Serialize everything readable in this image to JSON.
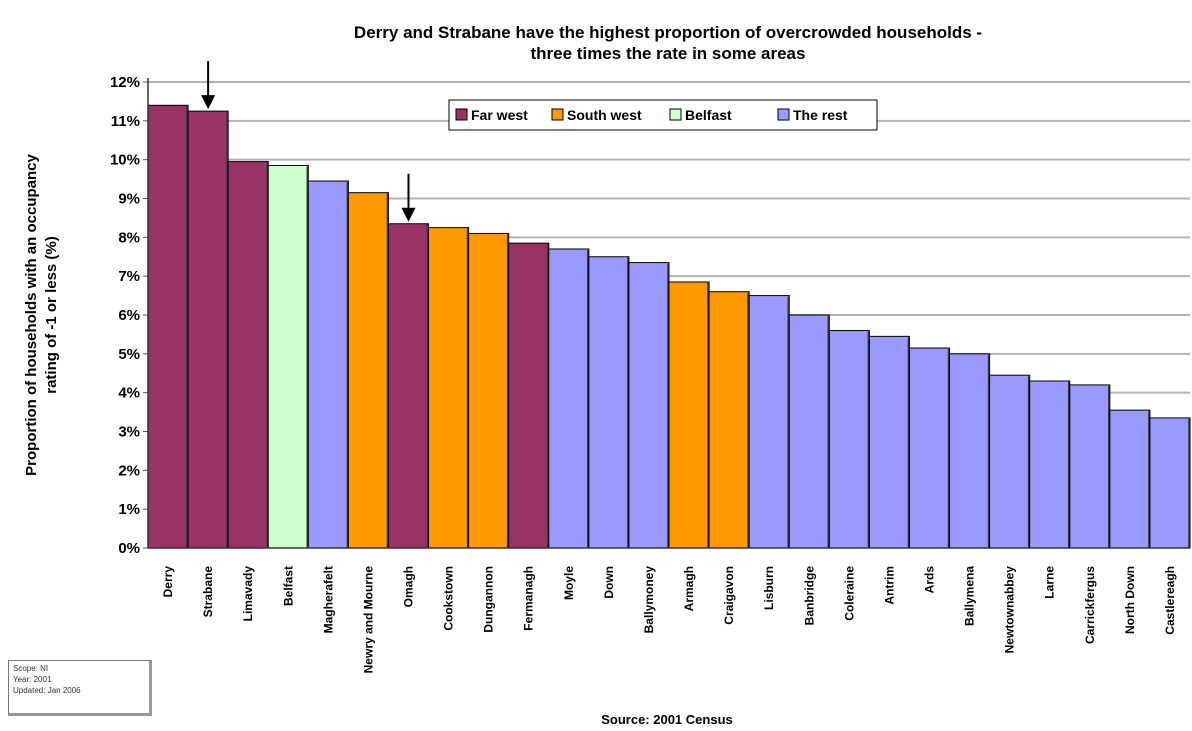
{
  "chart_data": {
    "type": "bar",
    "title": [
      "Derry and Strabane have the highest proportion of overcrowded households -",
      "three times the rate in some areas"
    ],
    "ylabel": [
      "Proportion of households with an occupancy",
      "rating of -1 or less (%)"
    ],
    "xlabel": "",
    "source": "Source: 2001 Census",
    "ylim": [
      0,
      12
    ],
    "yticks": [
      "0%",
      "1%",
      "2%",
      "3%",
      "4%",
      "5%",
      "6%",
      "7%",
      "8%",
      "9%",
      "10%",
      "11%",
      "12%"
    ],
    "grid": true,
    "legend_position": "top-center",
    "legend": [
      {
        "name": "Far west",
        "color": "#993366"
      },
      {
        "name": "South west",
        "color": "#ff9900"
      },
      {
        "name": "Belfast",
        "color": "#ccffcc"
      },
      {
        "name": "The rest",
        "color": "#9999ff"
      }
    ],
    "categories": [
      "Derry",
      "Strabane",
      "Limavady",
      "Belfast",
      "Magherafelt",
      "Newry and Mourne",
      "Omagh",
      "Cookstown",
      "Dungannon",
      "Fermanagh",
      "Moyle",
      "Down",
      "Ballymoney",
      "Armagh",
      "Craigavon",
      "Lisburn",
      "Banbridge",
      "Coleraine",
      "Antrim",
      "Ards",
      "Ballymena",
      "Newtownabbey",
      "Larne",
      "Carrickfergus",
      "North Down",
      "Castlereagh"
    ],
    "values": [
      11.4,
      11.25,
      9.95,
      9.85,
      9.45,
      9.15,
      8.35,
      8.25,
      8.1,
      7.85,
      7.7,
      7.5,
      7.35,
      6.85,
      6.6,
      6.5,
      6.0,
      5.6,
      5.45,
      5.15,
      5.0,
      4.45,
      4.3,
      4.2,
      3.55,
      3.35
    ],
    "groups": [
      "Far west",
      "Far west",
      "Far west",
      "Belfast",
      "The rest",
      "South west",
      "Far west",
      "South west",
      "South west",
      "Far west",
      "The rest",
      "The rest",
      "The rest",
      "South west",
      "South west",
      "The rest",
      "The rest",
      "The rest",
      "The rest",
      "The rest",
      "The rest",
      "The rest",
      "The rest",
      "The rest",
      "The rest",
      "The rest"
    ],
    "annotations": [
      {
        "type": "arrow",
        "category": "Strabane"
      },
      {
        "type": "arrow",
        "category": "Omagh"
      }
    ]
  },
  "meta_box": {
    "lines": [
      "Scope: NI",
      "Year: 2001",
      "Updated: Jan 2006"
    ]
  }
}
